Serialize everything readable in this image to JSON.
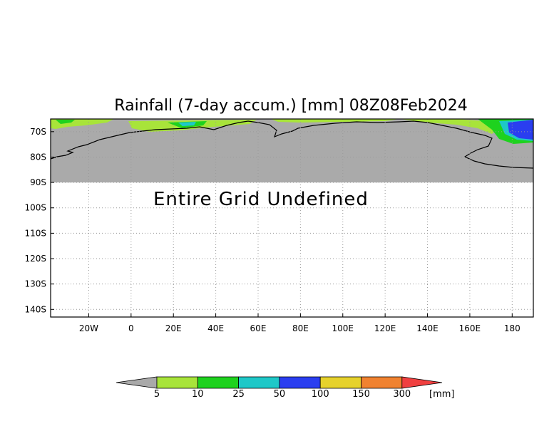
{
  "title": "Rainfall (7-day accum.) [mm] 08Z08Feb2024",
  "undefined_message": "Entire Grid Undefined",
  "map": {
    "lon_range": [
      -38,
      190
    ],
    "lat_range": [
      -65,
      -143
    ],
    "data_lat_limit": -90,
    "land_color": "#aaaaaa",
    "frame_color": "#000000",
    "grid_color": "#9a9a9a"
  },
  "x_ticks": [
    {
      "value": -20,
      "label": "20W"
    },
    {
      "value": 0,
      "label": "0"
    },
    {
      "value": 20,
      "label": "20E"
    },
    {
      "value": 40,
      "label": "40E"
    },
    {
      "value": 60,
      "label": "60E"
    },
    {
      "value": 80,
      "label": "80E"
    },
    {
      "value": 100,
      "label": "100E"
    },
    {
      "value": 120,
      "label": "120E"
    },
    {
      "value": 140,
      "label": "140E"
    },
    {
      "value": 160,
      "label": "160E"
    },
    {
      "value": 180,
      "label": "180"
    }
  ],
  "y_ticks": [
    {
      "value": -70,
      "label": "70S"
    },
    {
      "value": -80,
      "label": "80S"
    },
    {
      "value": -90,
      "label": "90S"
    },
    {
      "value": -100,
      "label": "100S"
    },
    {
      "value": -110,
      "label": "110S"
    },
    {
      "value": -120,
      "label": "120S"
    },
    {
      "value": -130,
      "label": "130S"
    },
    {
      "value": -140,
      "label": "140S"
    }
  ],
  "legend": {
    "unit": "[mm]",
    "under_color": "#a9a9a9",
    "over_color": "#f04040",
    "levels": [
      "5",
      "10",
      "25",
      "50",
      "100",
      "150",
      "300"
    ],
    "colors": [
      "#a8e43a",
      "#1ed21e",
      "#1ec8c8",
      "#2a3ef0",
      "#e6d22c",
      "#f08230"
    ]
  }
}
